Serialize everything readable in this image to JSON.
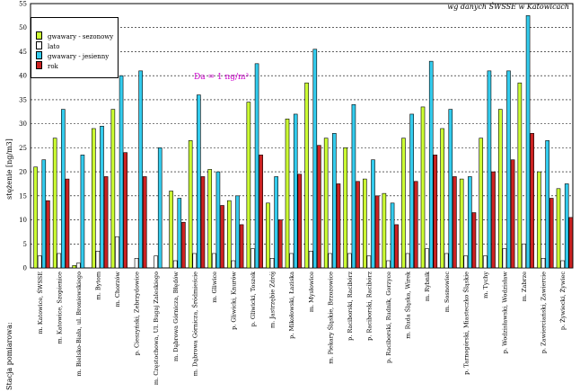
{
  "source_note": "wg danych ŚWSSE w Katowicach",
  "annotation": "Da = 1 ng/m³",
  "footnote": "Stacja pomiarowa:",
  "legend": [
    {
      "label": "gwawary - sezonowy",
      "color": "#ccff33"
    },
    {
      "label": "lato",
      "color": "#ffffff"
    },
    {
      "label": "gwawary - jesienny",
      "color": "#33ccee"
    },
    {
      "label": "rok",
      "color": "#cc2222"
    }
  ],
  "chart_data": {
    "type": "bar",
    "title": "",
    "xlabel": "",
    "ylabel": "stężenie [ng/m3]",
    "ylim": [
      0,
      55
    ],
    "yticks": [
      0,
      5,
      10,
      15,
      20,
      25,
      30,
      35,
      40,
      45,
      50,
      55
    ],
    "grid": true,
    "legend_position": "top-left",
    "categories": [
      "m. Katowice, ŚWSSE",
      "m. Katowice, Szopienice",
      "m. Bielsko-Biała, ul. Broniewskiego",
      "m. Bytom",
      "m. Chorzów",
      "p. Cieszyński, Zebrzydowice",
      "m. Częstochowa, Ul. Bugaj Zaleskiego",
      "m. Dąbrowa Górnicza, Błędów",
      "m. Dąbrowa Górnicza, Śródmieście",
      "m. Gliwice",
      "p. Gliwicki, Knurów",
      "p. Gliwicki, Toszek",
      "m. Jastrzębie Zdrój",
      "p. Mikołowski, Łaziska",
      "m. Mysłowice",
      "m. Piekary Śląskie, Brzozowice",
      "p. Raciborski, Racibórz",
      "p. Raciborski, Racibórz",
      "p. Raciborski, Rudnik, Gorzyce",
      "m. Ruda Śląska, Wirek",
      "m. Rybnik",
      "m. Sosnowiec",
      "p. Tarnogórski, Miasteczko Śląskie",
      "m. Tychy",
      "p. Wodzisławski, Wodzisław",
      "m. Zabrze",
      "p. Zawierciański, Zawiercie",
      "p. Żywiecki, Żywiec"
    ],
    "series": [
      {
        "name": "gwawary - sezonowy",
        "color": "#ccff33",
        "values": [
          21,
          27,
          0.5,
          29,
          33,
          0,
          0,
          16,
          26.5,
          20.5,
          14,
          34.5,
          13.5,
          31,
          38.5,
          27,
          25,
          18.5,
          15.5,
          27,
          33.5,
          29,
          18.5,
          27,
          33,
          38.5,
          20,
          16.5
        ]
      },
      {
        "name": "lato",
        "color": "#ffffff",
        "values": [
          2.5,
          3,
          1,
          3.5,
          6.5,
          2,
          2.5,
          1.5,
          3,
          3,
          1.5,
          4,
          2,
          3,
          3.5,
          3,
          3,
          2.5,
          1.5,
          3,
          4,
          3,
          2.5,
          2.5,
          4,
          5,
          2,
          1.5
        ]
      },
      {
        "name": "gwawary - jesienny",
        "color": "#33ccee",
        "values": [
          22.5,
          33,
          23.5,
          29.5,
          40,
          41,
          25,
          14.5,
          36,
          20,
          15,
          42.5,
          19,
          32,
          45.5,
          28,
          34,
          22.5,
          13.5,
          32,
          43,
          33,
          19,
          41,
          41,
          52.5,
          26.5,
          17.5
        ]
      },
      {
        "name": "rok",
        "color": "#cc2222",
        "values": [
          14,
          18.5,
          0,
          19,
          24,
          19,
          0,
          9.5,
          19,
          13,
          9,
          23.5,
          10,
          19.5,
          25.5,
          17.5,
          18,
          15,
          9,
          18,
          23.5,
          19,
          11.5,
          20,
          22.5,
          28,
          14.5,
          10.5
        ]
      }
    ]
  }
}
